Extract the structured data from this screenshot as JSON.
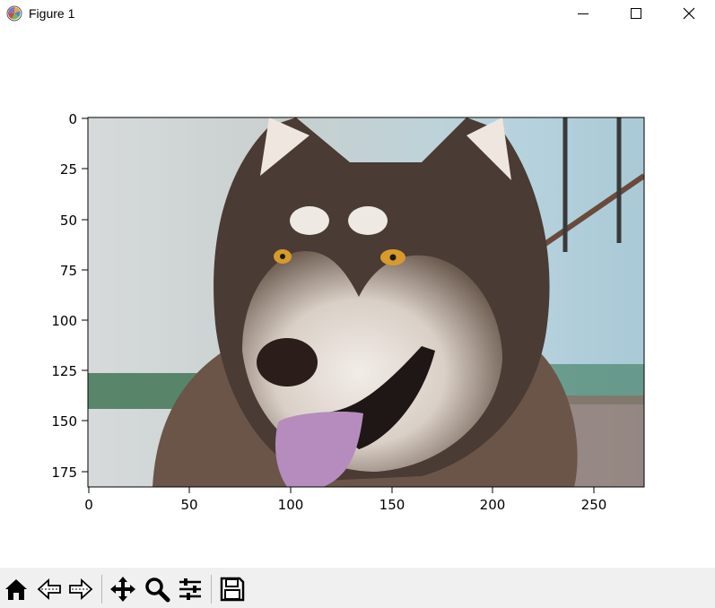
{
  "window": {
    "title": "Figure 1",
    "icon": "matplotlib-icon",
    "controls": [
      "minimize",
      "maximize",
      "close"
    ]
  },
  "plot": {
    "image_description_hidden": "",
    "x_ticks": [
      "0",
      "50",
      "100",
      "150",
      "200",
      "250"
    ],
    "y_ticks": [
      "0",
      "25",
      "50",
      "75",
      "100",
      "125",
      "150",
      "175"
    ],
    "x_range": [
      -0.5,
      274.5
    ],
    "y_range": [
      182.5,
      -0.5
    ]
  },
  "toolbar": {
    "buttons": [
      {
        "name": "home",
        "icon": "home-icon"
      },
      {
        "name": "back",
        "icon": "left-arrow-icon"
      },
      {
        "name": "forward",
        "icon": "right-arrow-icon"
      },
      {
        "name": "pan",
        "icon": "move-icon"
      },
      {
        "name": "zoom",
        "icon": "magnifier-icon"
      },
      {
        "name": "configure-subplots",
        "icon": "sliders-icon"
      },
      {
        "name": "save",
        "icon": "floppy-disk-icon"
      }
    ]
  }
}
